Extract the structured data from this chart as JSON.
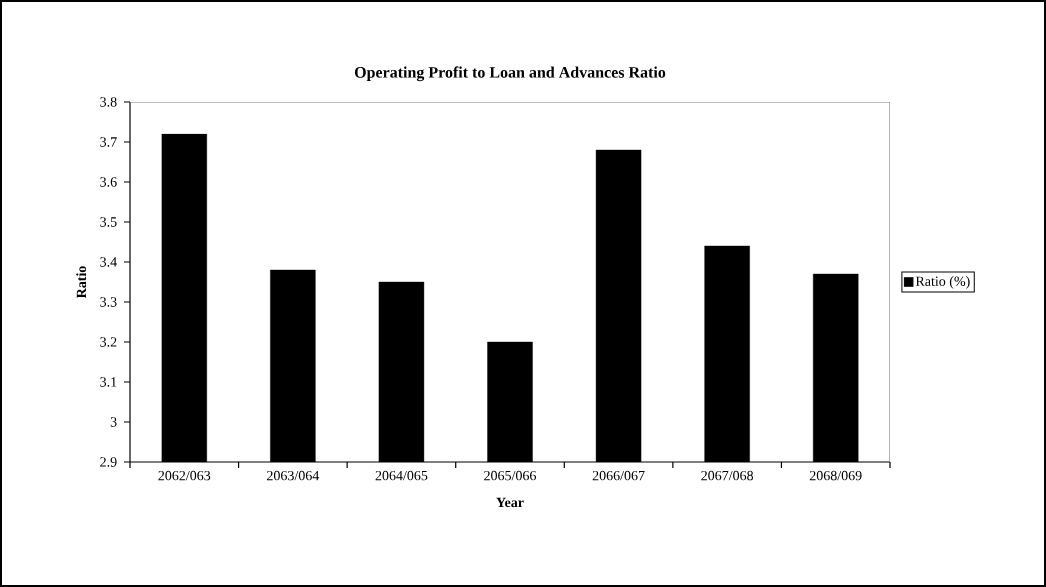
{
  "chart_data": {
    "type": "bar",
    "title": "Operating Profit to Loan and Advances Ratio",
    "xlabel": "Year",
    "ylabel": "Ratio",
    "categories": [
      "2062/063",
      "2063/064",
      "2064/065",
      "2065/066",
      "2066/067",
      "2067/068",
      "2068/069"
    ],
    "series": [
      {
        "name": "Ratio (%)",
        "color": "#000000",
        "values": [
          3.72,
          3.38,
          3.35,
          3.2,
          3.68,
          3.44,
          3.37
        ]
      }
    ],
    "ylim": [
      2.9,
      3.8
    ],
    "yticks": [
      2.9,
      3,
      3.1,
      3.2,
      3.3,
      3.4,
      3.5,
      3.6,
      3.7,
      3.8
    ],
    "legend": "right"
  }
}
